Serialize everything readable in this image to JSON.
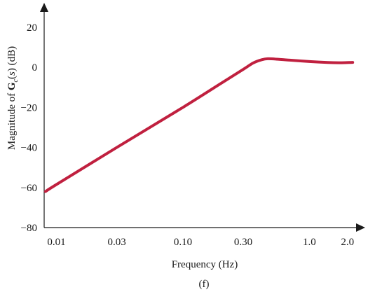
{
  "chart_data": {
    "type": "line",
    "xlabel": "Frequency (Hz)",
    "ylabel_parts": [
      "Magnitude of ",
      "G",
      "c",
      "(",
      "s",
      ") (dB)"
    ],
    "ylabel": "Magnitude of Gc(s) (dB)",
    "panel_label": "(f)",
    "x_scale": "log",
    "xlim": [
      0.008,
      2.4
    ],
    "ylim": [
      -80,
      20
    ],
    "x_ticks": [
      {
        "value": 0.01,
        "label": "0.01"
      },
      {
        "value": 0.03,
        "label": "0.03"
      },
      {
        "value": 0.1,
        "label": "0.10"
      },
      {
        "value": 0.3,
        "label": "0.30"
      },
      {
        "value": 1.0,
        "label": "1.0"
      },
      {
        "value": 2.0,
        "label": "2.0"
      }
    ],
    "y_ticks": [
      {
        "value": 20,
        "label": "20"
      },
      {
        "value": 0,
        "label": "0"
      },
      {
        "value": -20,
        "label": "−20"
      },
      {
        "value": -40,
        "label": "−40"
      },
      {
        "value": -60,
        "label": "−60"
      },
      {
        "value": -80,
        "label": "−80"
      }
    ],
    "grid": false,
    "line_color": "#c0203f",
    "series": [
      {
        "x": [
          0.0082,
          0.01,
          0.03,
          0.1,
          0.2,
          0.3,
          0.36,
          0.42,
          0.47,
          0.55,
          0.7,
          1.0,
          1.4,
          1.8,
          2.2
        ],
        "y": [
          -62,
          -58.5,
          -40,
          -20,
          -8,
          -1,
          2.2,
          3.8,
          4.3,
          4.1,
          3.6,
          2.9,
          2.4,
          2.3,
          2.5
        ]
      }
    ]
  }
}
